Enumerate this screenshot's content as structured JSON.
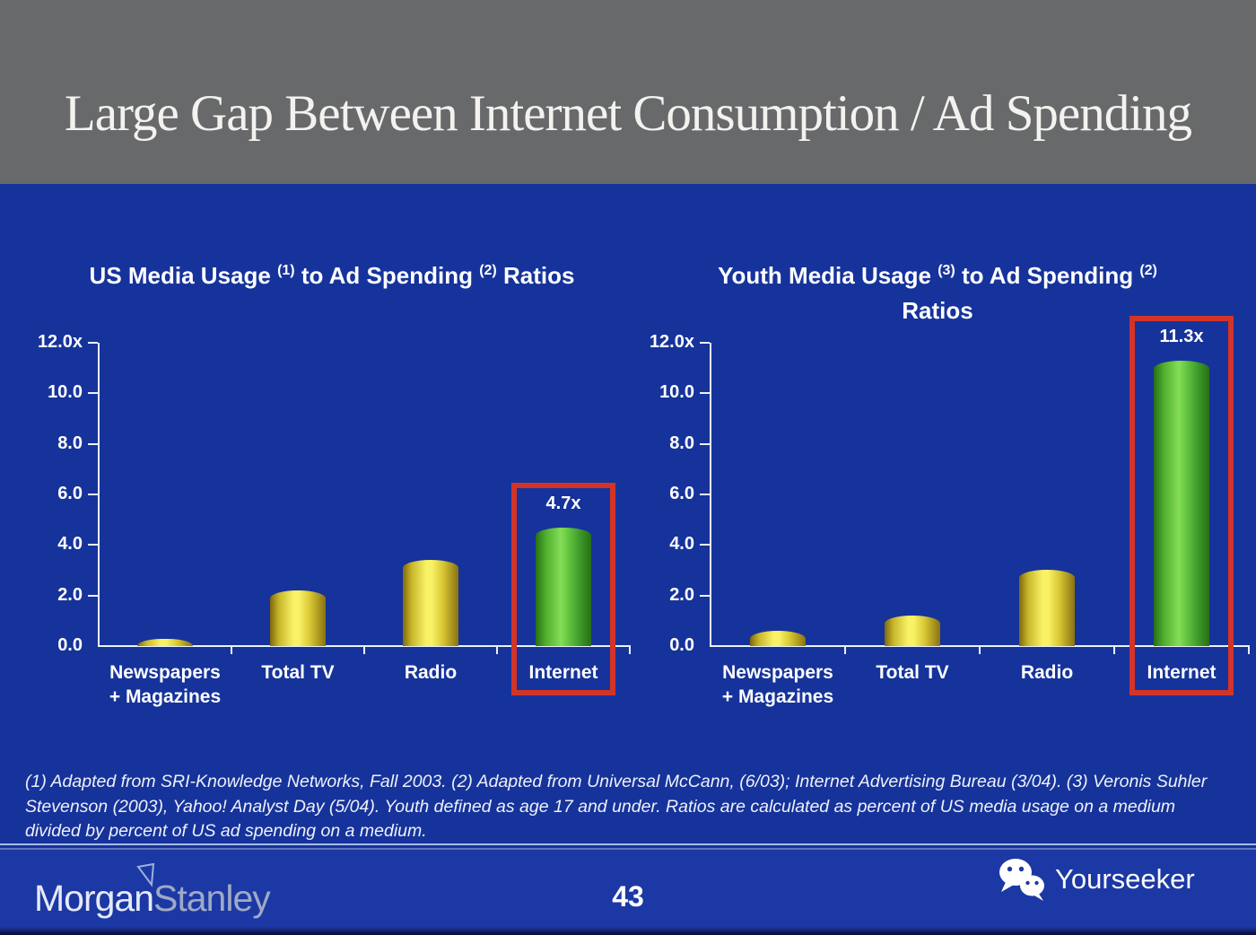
{
  "page": {
    "title": "Large Gap Between Internet Consumption / Ad Spending",
    "page_number": "43",
    "footnote": "(1) Adapted from SRI-Knowledge Networks, Fall 2003.  (2) Adapted from Universal McCann, (6/03); Internet Advertising Bureau (3/04). (3) Veronis Suhler Stevenson (2003), Yahoo! Analyst Day (5/04).  Youth defined as age 17 and under.  Ratios are calculated as percent of US media usage on a medium divided by percent of US ad spending on a medium."
  },
  "branding": {
    "morgan": "Morgan",
    "stanley": "Stanley",
    "watermark_text": "Yourseeker"
  },
  "colors": {
    "header_gray": "#67696b",
    "body_blue": "#16339b",
    "footer_blue": "#1c38a4",
    "bar_yellow": "#f9f266",
    "bar_green": "#6bcb44",
    "highlight_red": "#d23428",
    "text_white": "#ffffff"
  },
  "chart_data": [
    {
      "type": "bar",
      "title": "US Media Usage (1) to Ad Spending (2) Ratios",
      "title_lines": [
        [
          {
            "text": "US Media Usage "
          },
          {
            "sup": "(1)"
          },
          {
            "text": " to Ad Spending "
          },
          {
            "sup": "(2)"
          },
          {
            "text": " Ratios"
          }
        ]
      ],
      "categories": [
        "Newspapers + Magazines",
        "Total TV",
        "Radio",
        "Internet"
      ],
      "category_lines": [
        [
          "Newspapers",
          "+ Magazines"
        ],
        [
          "Total TV"
        ],
        [
          "Radio"
        ],
        [
          "Internet"
        ]
      ],
      "values": [
        0.3,
        2.2,
        3.4,
        4.7
      ],
      "bar_labels": [
        "",
        "",
        "",
        "4.7x"
      ],
      "bar_colors": [
        "yellow",
        "yellow",
        "yellow",
        "green"
      ],
      "highlight_index": 3,
      "ylim": [
        0,
        12
      ],
      "yticks": [
        0,
        2,
        4,
        6,
        8,
        10,
        12
      ],
      "ytick_labels": [
        "0.0",
        "2.0",
        "4.0",
        "6.0",
        "8.0",
        "10.0",
        "12.0x"
      ],
      "xlabel": "",
      "ylabel": "",
      "grid": false,
      "legend": null
    },
    {
      "type": "bar",
      "title": "Youth Media Usage (3) to Ad Spending (2) Ratios",
      "title_lines": [
        [
          {
            "text": "Youth Media Usage "
          },
          {
            "sup": "(3)"
          },
          {
            "text": " to Ad Spending "
          },
          {
            "sup": "(2)"
          }
        ],
        [
          {
            "text": "Ratios"
          }
        ]
      ],
      "categories": [
        "Newspapers + Magazines",
        "Total TV",
        "Radio",
        "Internet"
      ],
      "category_lines": [
        [
          "Newspapers",
          "+ Magazines"
        ],
        [
          "Total TV"
        ],
        [
          "Radio"
        ],
        [
          "Internet"
        ]
      ],
      "values": [
        0.6,
        1.2,
        3.0,
        11.3
      ],
      "bar_labels": [
        "",
        "",
        "",
        "11.3x"
      ],
      "bar_colors": [
        "yellow",
        "yellow",
        "yellow",
        "green"
      ],
      "highlight_index": 3,
      "ylim": [
        0,
        12
      ],
      "yticks": [
        0,
        2,
        4,
        6,
        8,
        10,
        12
      ],
      "ytick_labels": [
        "0.0",
        "2.0",
        "4.0",
        "6.0",
        "8.0",
        "10.0",
        "12.0x"
      ],
      "xlabel": "",
      "ylabel": "",
      "grid": false,
      "legend": null
    }
  ]
}
